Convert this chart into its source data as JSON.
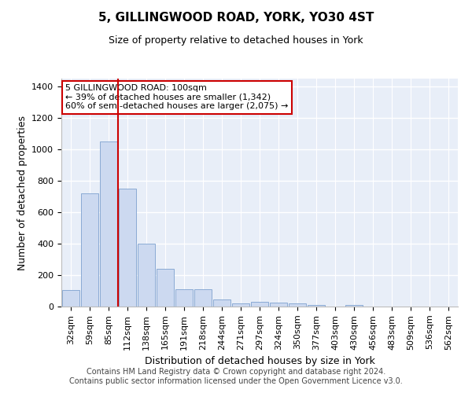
{
  "title1": "5, GILLINGWOOD ROAD, YORK, YO30 4ST",
  "title2": "Size of property relative to detached houses in York",
  "xlabel": "Distribution of detached houses by size in York",
  "ylabel": "Number of detached properties",
  "bar_labels": [
    "32sqm",
    "59sqm",
    "85sqm",
    "112sqm",
    "138sqm",
    "165sqm",
    "191sqm",
    "218sqm",
    "244sqm",
    "271sqm",
    "297sqm",
    "324sqm",
    "350sqm",
    "377sqm",
    "403sqm",
    "430sqm",
    "456sqm",
    "483sqm",
    "509sqm",
    "536sqm",
    "562sqm"
  ],
  "bar_values": [
    105,
    720,
    1050,
    750,
    400,
    240,
    110,
    110,
    47,
    20,
    28,
    25,
    18,
    10,
    0,
    12,
    0,
    0,
    0,
    0,
    0
  ],
  "bar_color": "#ccd9f0",
  "bar_edge_color": "#8aaad4",
  "background_color": "#e8eef8",
  "grid_color": "#ffffff",
  "vline_color": "#cc0000",
  "annotation_line1": "5 GILLINGWOOD ROAD: 100sqm",
  "annotation_line2": "← 39% of detached houses are smaller (1,342)",
  "annotation_line3": "60% of semi-detached houses are larger (2,075) →",
  "annotation_box_color": "#ffffff",
  "annotation_box_edge": "#cc0000",
  "ylim": [
    0,
    1450
  ],
  "yticks": [
    0,
    200,
    400,
    600,
    800,
    1000,
    1200,
    1400
  ],
  "footer1": "Contains HM Land Registry data © Crown copyright and database right 2024.",
  "footer2": "Contains public sector information licensed under the Open Government Licence v3.0.",
  "title1_fontsize": 11,
  "title2_fontsize": 9,
  "ylabel_fontsize": 9,
  "xlabel_fontsize": 9,
  "tick_fontsize": 8,
  "footer_fontsize": 7
}
